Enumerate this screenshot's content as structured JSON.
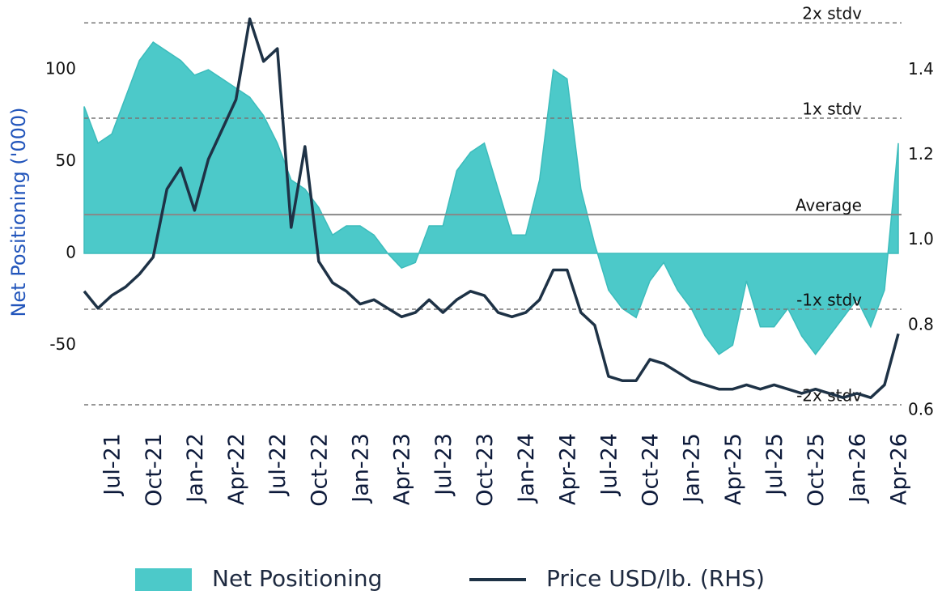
{
  "chart_data": {
    "type": "area-line",
    "ylabel": "Net Positioning ('000)",
    "x": [
      "2021-05",
      "2021-06",
      "2021-07",
      "2021-08",
      "2021-09",
      "2021-10",
      "2021-11",
      "2021-12",
      "2022-01",
      "2022-02",
      "2022-03",
      "2022-04",
      "2022-05",
      "2022-06",
      "2022-07",
      "2022-08",
      "2022-09",
      "2022-10",
      "2022-11",
      "2022-12",
      "2023-01",
      "2023-02",
      "2023-03",
      "2023-04",
      "2023-05",
      "2023-06",
      "2023-07",
      "2023-08",
      "2023-09",
      "2023-10",
      "2023-11",
      "2023-12",
      "2024-01",
      "2024-02",
      "2024-03",
      "2024-04",
      "2024-05",
      "2024-06",
      "2024-07",
      "2024-08",
      "2024-09",
      "2024-10",
      "2024-11",
      "2024-12",
      "2025-01",
      "2025-02",
      "2025-03",
      "2025-04",
      "2025-05",
      "2025-06",
      "2025-07",
      "2025-08",
      "2025-09",
      "2025-10",
      "2025-11",
      "2025-12",
      "2026-01",
      "2026-02",
      "2026-03",
      "2026-04"
    ],
    "xlim": [
      "2021-05",
      "2026-04"
    ],
    "xticks": [
      {
        "value": "2021-07",
        "label": "Jul-21"
      },
      {
        "value": "2021-10",
        "label": "Oct-21"
      },
      {
        "value": "2022-01",
        "label": "Jan-22"
      },
      {
        "value": "2022-04",
        "label": "Apr-22"
      },
      {
        "value": "2022-07",
        "label": "Jul-22"
      },
      {
        "value": "2022-10",
        "label": "Oct-22"
      },
      {
        "value": "2023-01",
        "label": "Jan-23"
      },
      {
        "value": "2023-04",
        "label": "Apr-23"
      },
      {
        "value": "2023-07",
        "label": "Jul-23"
      },
      {
        "value": "2023-10",
        "label": "Oct-23"
      },
      {
        "value": "2024-01",
        "label": "Jan-24"
      },
      {
        "value": "2024-04",
        "label": "Apr-24"
      },
      {
        "value": "2024-07",
        "label": "Jul-24"
      },
      {
        "value": "2024-10",
        "label": "Oct-24"
      },
      {
        "value": "2025-01",
        "label": "Jan-25"
      },
      {
        "value": "2025-04",
        "label": "Apr-25"
      },
      {
        "value": "2025-07",
        "label": "Jul-25"
      },
      {
        "value": "2025-10",
        "label": "Oct-25"
      },
      {
        "value": "2026-01",
        "label": "Jan-26"
      },
      {
        "value": "2026-04",
        "label": "Apr-26"
      }
    ],
    "ylim": [
      -85.5,
      130
    ],
    "yticks": [
      -50,
      0,
      50,
      100
    ],
    "y2lim": [
      0.6,
      1.53
    ],
    "y2ticks": [
      0.6,
      0.8,
      {
        "value": 1,
        "label": "1.0"
      },
      1.2,
      1.4
    ],
    "series": [
      {
        "name": "Net Positioning",
        "kind": "area",
        "color": "#4cc9c9",
        "values": [
          80,
          60,
          65,
          85,
          105,
          115,
          110,
          105,
          97,
          100,
          95,
          90,
          85,
          75,
          60,
          40,
          35,
          25,
          10,
          15,
          15,
          10,
          0,
          -8,
          -5,
          15,
          15,
          45,
          55,
          60,
          35,
          10,
          10,
          40,
          100,
          95,
          35,
          5,
          -20,
          -30,
          -35,
          -15,
          -5,
          -20,
          -30,
          -45,
          -55,
          -50,
          -15,
          -40,
          -40,
          -30,
          -45,
          -55,
          -45,
          -35,
          -25,
          -40,
          -20,
          60
        ]
      },
      {
        "name": "Price USD/lb. (RHS)",
        "kind": "line",
        "axis": "y2",
        "color": "#1e3246",
        "values": [
          0.88,
          0.84,
          0.87,
          0.89,
          0.92,
          0.96,
          1.12,
          1.17,
          1.07,
          1.19,
          1.26,
          1.33,
          1.52,
          1.42,
          1.45,
          1.03,
          1.22,
          0.95,
          0.9,
          0.88,
          0.85,
          0.86,
          0.84,
          0.82,
          0.83,
          0.86,
          0.83,
          0.86,
          0.88,
          0.87,
          0.83,
          0.82,
          0.83,
          0.86,
          0.93,
          0.93,
          0.83,
          0.8,
          0.68,
          0.67,
          0.67,
          0.72,
          0.71,
          0.69,
          0.67,
          0.66,
          0.65,
          0.65,
          0.66,
          0.65,
          0.66,
          0.65,
          0.64,
          0.65,
          0.64,
          0.63,
          0.64,
          0.63,
          0.66,
          0.78
        ]
      }
    ],
    "reference_lines": [
      {
        "label": "2x stdv",
        "value": 125.5,
        "style": "dashed"
      },
      {
        "label": "1x stdv",
        "value": 73.6,
        "style": "dashed"
      },
      {
        "label": "Average",
        "value": 21.1,
        "style": "solid"
      },
      {
        "label": "-1x stdv",
        "value": -30.4,
        "style": "dashed"
      },
      {
        "label": "-2x stdv",
        "value": -82.4,
        "style": "dashed"
      }
    ],
    "legend": "bottom"
  }
}
